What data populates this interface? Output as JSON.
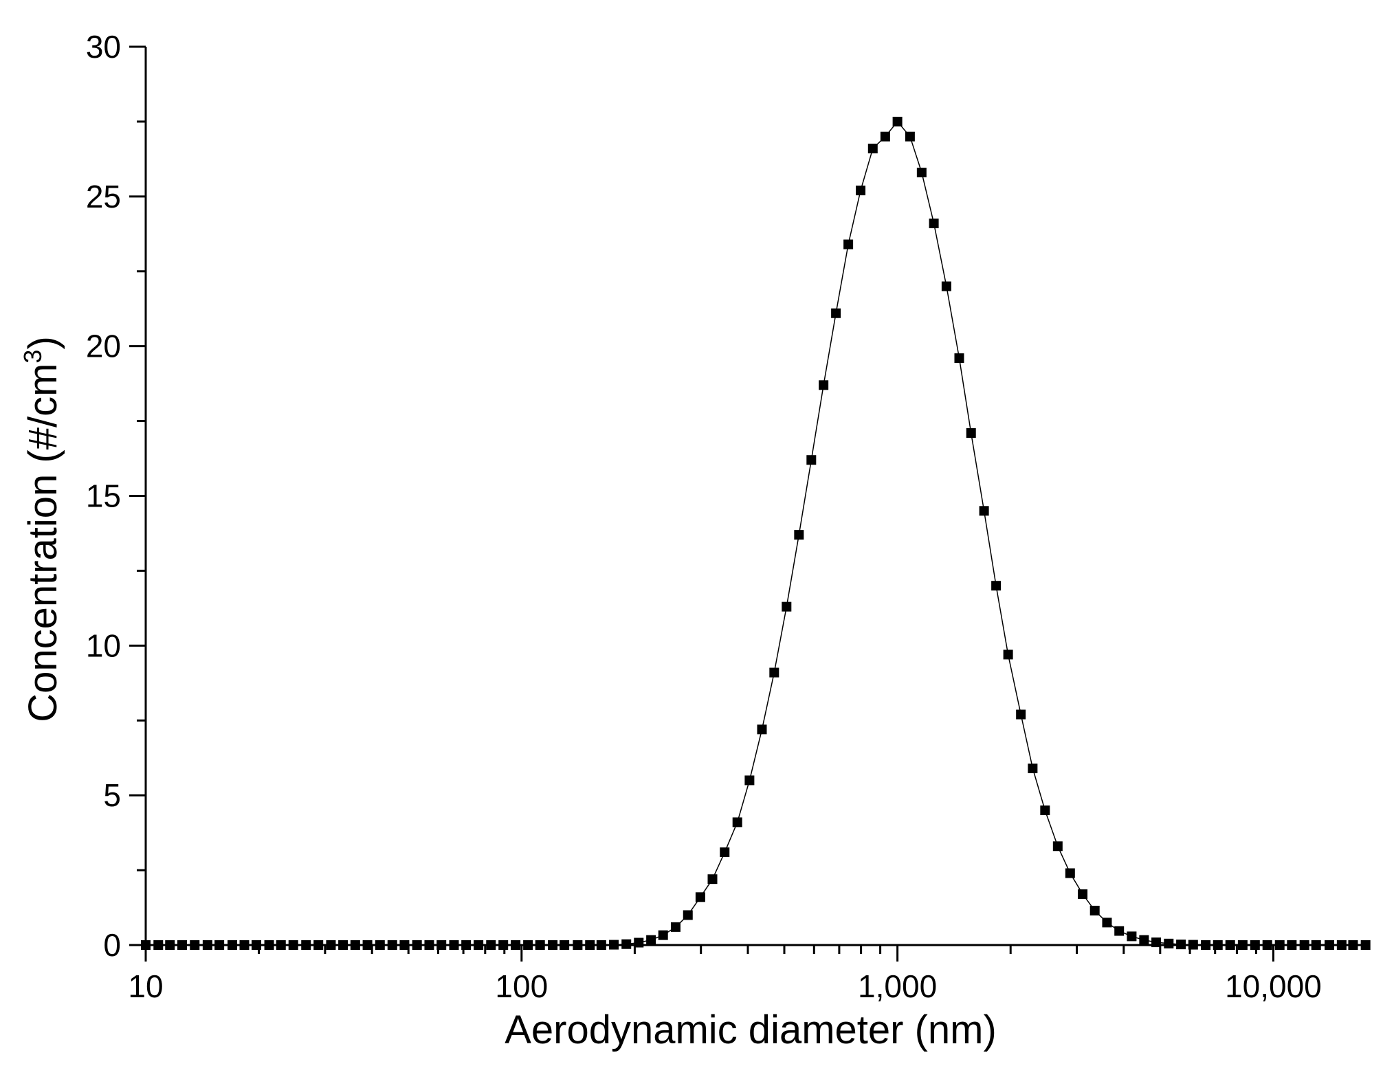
{
  "chart_data": {
    "type": "scatter",
    "title": "",
    "xlabel": "Aerodynamic diameter (nm)",
    "ylabel": {
      "text": "Concentration (#/cm",
      "superscript": "3",
      "suffix": ")"
    },
    "x_scale": "log",
    "xlim": [
      10,
      18000
    ],
    "ylim": [
      0,
      30
    ],
    "x_ticks": [
      {
        "value": 10,
        "label": "10"
      },
      {
        "value": 100,
        "label": "100"
      },
      {
        "value": 1000,
        "label": "1,000"
      },
      {
        "value": 10000,
        "label": "10,000"
      }
    ],
    "y_ticks": [
      {
        "value": 0,
        "label": "0"
      },
      {
        "value": 5,
        "label": "5"
      },
      {
        "value": 10,
        "label": "10"
      },
      {
        "value": 15,
        "label": "15"
      },
      {
        "value": 20,
        "label": "20"
      },
      {
        "value": 25,
        "label": "25"
      },
      {
        "value": 30,
        "label": "30"
      }
    ],
    "grid": false,
    "legend": "none",
    "series": [
      {
        "color": "#000000",
        "marker": "square",
        "line": "thin solid",
        "x": [
          10,
          10.8,
          11.6,
          12.5,
          13.5,
          14.6,
          15.7,
          17,
          18.3,
          19.7,
          21.3,
          22.9,
          24.7,
          26.7,
          28.8,
          31.1,
          33.5,
          36.1,
          38.9,
          42,
          45.3,
          48.8,
          52.7,
          56.8,
          61.2,
          66.1,
          71.2,
          76.8,
          82.9,
          89.4,
          96.4,
          104,
          112,
          121,
          130,
          141,
          152,
          163,
          176,
          190,
          205,
          221,
          238,
          257,
          277,
          299,
          322,
          347,
          375,
          404,
          436,
          470,
          507,
          547,
          590,
          636,
          686,
          740,
          798,
          860,
          928,
          1000,
          1080,
          1160,
          1250,
          1350,
          1460,
          1570,
          1700,
          1830,
          1970,
          2130,
          2290,
          2470,
          2670,
          2880,
          3110,
          3350,
          3610,
          3890,
          4200,
          4530,
          4880,
          5270,
          5680,
          6120,
          6610,
          7120,
          7680,
          8290,
          8940,
          9640,
          10400,
          11200,
          12100,
          13000,
          14100,
          15200,
          16300,
          17600
        ],
        "y": [
          0,
          0,
          0,
          0,
          0,
          0,
          0,
          0,
          0,
          0,
          0,
          0,
          0,
          0,
          0,
          0,
          0,
          0,
          0,
          0,
          0,
          0,
          0,
          0,
          0,
          0,
          0,
          0,
          0,
          0,
          0,
          0,
          0,
          0,
          0,
          0,
          0,
          0,
          0.01,
          0.03,
          0.08,
          0.17,
          0.33,
          0.6,
          1.0,
          1.6,
          2.2,
          3.1,
          4.1,
          5.5,
          7.2,
          9.1,
          11.3,
          13.7,
          16.2,
          18.7,
          21.1,
          23.4,
          25.2,
          26.6,
          27.0,
          27.5,
          27.0,
          25.8,
          24.1,
          22.0,
          19.6,
          17.1,
          14.5,
          12.0,
          9.7,
          7.7,
          5.9,
          4.5,
          3.3,
          2.4,
          1.7,
          1.15,
          0.75,
          0.47,
          0.29,
          0.17,
          0.09,
          0.05,
          0.02,
          0.01,
          0,
          0,
          0,
          0,
          0,
          0,
          0,
          0,
          0,
          0,
          0,
          0,
          0,
          0
        ]
      }
    ]
  }
}
